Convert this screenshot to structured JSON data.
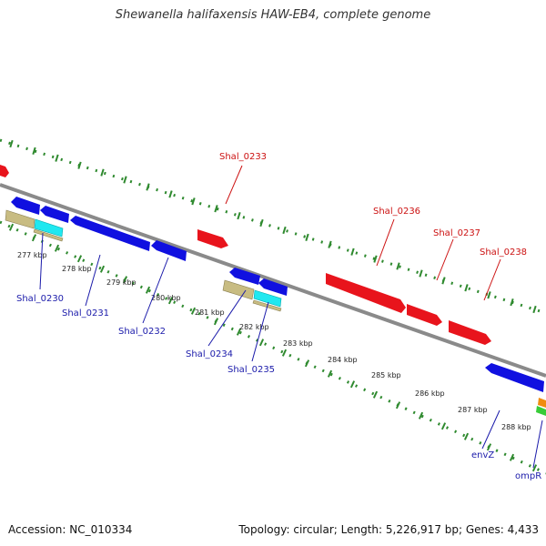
{
  "title": "Shewanella halifaxensis HAW-EB4, complete genome",
  "footer": {
    "accession": "Accession: NC_010334",
    "stats": "Topology: circular; Length: 5,226,917 bp; Genes: 4,433"
  },
  "colors": {
    "backbone": "#8a8a8a",
    "ruler_dots": "#2f8a2f",
    "gene_forward": "#e8141c",
    "gene_reverse": "#1010e0",
    "label_forward": "#cc1111",
    "label_reverse": "#1a1aaa",
    "feature_tan": "#c8bc82",
    "feature_cyan": "#20e8f0",
    "feature_orange": "#f08c10",
    "feature_green": "#38cc38"
  },
  "kbp_ticks": [
    {
      "label": "277 kbp",
      "kbp": 277
    },
    {
      "label": "278 kbp",
      "kbp": 278
    },
    {
      "label": "279 kbp",
      "kbp": 279
    },
    {
      "label": "280 kbp",
      "kbp": 280
    },
    {
      "label": "281 kbp",
      "kbp": 281
    },
    {
      "label": "282 kbp",
      "kbp": 282
    },
    {
      "label": "283 kbp",
      "kbp": 283
    },
    {
      "label": "284 kbp",
      "kbp": 284
    },
    {
      "label": "285 kbp",
      "kbp": 285
    },
    {
      "label": "286 kbp",
      "kbp": 286
    },
    {
      "label": "287 kbp",
      "kbp": 287
    },
    {
      "label": "288 kbp",
      "kbp": 288
    }
  ],
  "gene_labels": [
    {
      "text": "Shal_0233",
      "strand": "forward"
    },
    {
      "text": "Shal_0236",
      "strand": "forward"
    },
    {
      "text": "Shal_0237",
      "strand": "forward"
    },
    {
      "text": "Shal_0238",
      "strand": "forward"
    },
    {
      "text": "Shal_0230",
      "strand": "reverse"
    },
    {
      "text": "Shal_0231",
      "strand": "reverse"
    },
    {
      "text": "Shal_0232",
      "strand": "reverse"
    },
    {
      "text": "Shal_0234",
      "strand": "reverse"
    },
    {
      "text": "Shal_0235",
      "strand": "reverse"
    },
    {
      "text": "envZ",
      "strand": "reverse"
    },
    {
      "text": "ompR",
      "strand": "reverse"
    }
  ]
}
